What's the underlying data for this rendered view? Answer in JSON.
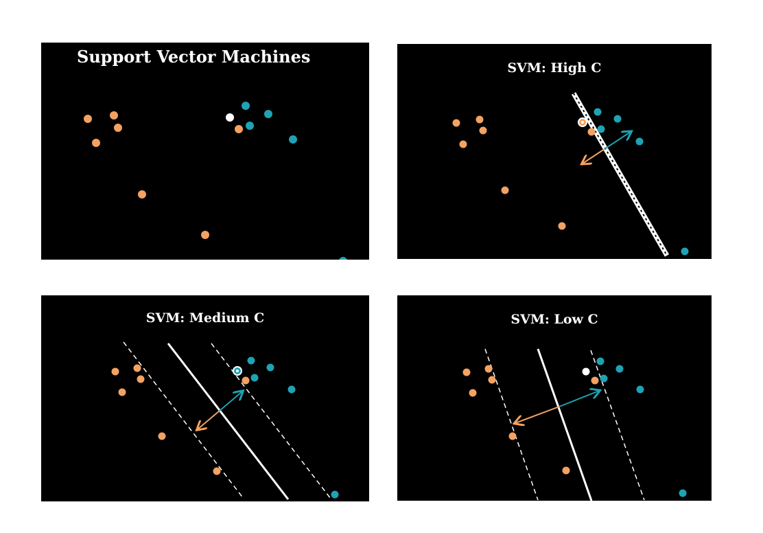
{
  "colors": {
    "background": "#000000",
    "class_a": "#f4a261",
    "class_b": "#1fa2b4",
    "highlight": "#ffffff",
    "boundary": "#ffffff"
  },
  "panels": [
    {
      "id": "p1",
      "title": "Support Vector Machines",
      "has_boundary": false,
      "has_margins": false,
      "highlight_point": "white-dot"
    },
    {
      "id": "p2",
      "title": "SVM: High C",
      "has_boundary": true,
      "has_margins": false,
      "highlight_point": "ringed-orange"
    },
    {
      "id": "p3",
      "title": "SVM: Medium C",
      "has_boundary": true,
      "has_margins": true,
      "highlight_point": "ringed-blue"
    },
    {
      "id": "p4",
      "title": "SVM: Low C",
      "has_boundary": true,
      "has_margins": true,
      "highlight_point": "white-dot"
    }
  ]
}
